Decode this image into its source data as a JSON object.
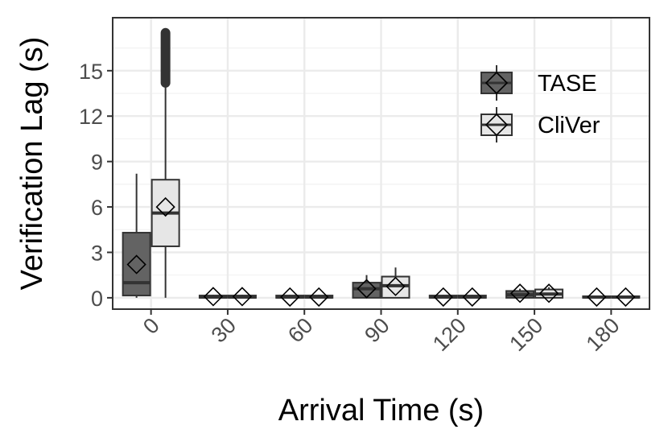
{
  "chart_data": {
    "type": "boxplot",
    "xlabel": "Arrival Time (s)",
    "ylabel": "Verification Lag (s)",
    "categories": [
      "0",
      "30",
      "60",
      "90",
      "120",
      "150",
      "180"
    ],
    "ylim": [
      -0.75,
      18.5
    ],
    "yticks": [
      0,
      3,
      6,
      9,
      12,
      15
    ],
    "grid": true,
    "legend_position": "top-right",
    "series": [
      {
        "name": "TASE",
        "fill": "#636363",
        "boxes": [
          {
            "whisker_low": 0.0,
            "q1": 0.15,
            "median": 1.0,
            "q3": 4.3,
            "whisker_high": 8.2,
            "mean": 2.2
          },
          {
            "whisker_low": 0.0,
            "q1": 0.0,
            "median": 0.05,
            "q3": 0.15,
            "whisker_high": 0.2,
            "mean": 0.08
          },
          {
            "whisker_low": 0.0,
            "q1": 0.0,
            "median": 0.05,
            "q3": 0.15,
            "whisker_high": 0.2,
            "mean": 0.05
          },
          {
            "whisker_low": 0.0,
            "q1": 0.0,
            "median": 0.6,
            "q3": 1.0,
            "whisker_high": 1.5,
            "mean": 0.6
          },
          {
            "whisker_low": 0.0,
            "q1": 0.0,
            "median": 0.05,
            "q3": 0.15,
            "whisker_high": 0.2,
            "mean": 0.05
          },
          {
            "whisker_low": 0.0,
            "q1": 0.0,
            "median": 0.2,
            "q3": 0.45,
            "whisker_high": 0.6,
            "mean": 0.3
          },
          {
            "whisker_low": 0.0,
            "q1": 0.0,
            "median": 0.05,
            "q3": 0.1,
            "whisker_high": 0.15,
            "mean": 0.05
          }
        ]
      },
      {
        "name": "CliVer",
        "fill": "#e6e6e6",
        "boxes": [
          {
            "whisker_low": 0.0,
            "q1": 3.4,
            "median": 5.6,
            "q3": 7.8,
            "whisker_high": 14.1,
            "mean": 6.0,
            "outliers_range": [
              14.2,
              17.5
            ]
          },
          {
            "whisker_low": 0.0,
            "q1": 0.0,
            "median": 0.05,
            "q3": 0.15,
            "whisker_high": 0.2,
            "mean": 0.08
          },
          {
            "whisker_low": 0.0,
            "q1": 0.0,
            "median": 0.05,
            "q3": 0.15,
            "whisker_high": 0.2,
            "mean": 0.05
          },
          {
            "whisker_low": 0.0,
            "q1": 0.0,
            "median": 0.8,
            "q3": 1.4,
            "whisker_high": 2.0,
            "mean": 0.75
          },
          {
            "whisker_low": 0.0,
            "q1": 0.0,
            "median": 0.05,
            "q3": 0.15,
            "whisker_high": 0.2,
            "mean": 0.05
          },
          {
            "whisker_low": 0.0,
            "q1": 0.0,
            "median": 0.25,
            "q3": 0.55,
            "whisker_high": 0.7,
            "mean": 0.3
          },
          {
            "whisker_low": 0.0,
            "q1": 0.0,
            "median": 0.05,
            "q3": 0.1,
            "whisker_high": 0.15,
            "mean": 0.05
          }
        ]
      }
    ]
  }
}
